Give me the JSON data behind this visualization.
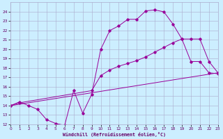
{
  "xlabel": "Windchill (Refroidissement éolien,°C)",
  "bg_color": "#cceeff",
  "line_color": "#990099",
  "xlim": [
    0,
    23
  ],
  "ylim": [
    12,
    25
  ],
  "xticks": [
    0,
    1,
    2,
    3,
    4,
    5,
    6,
    7,
    8,
    9,
    10,
    11,
    12,
    13,
    14,
    15,
    16,
    17,
    18,
    19,
    20,
    21,
    22,
    23
  ],
  "yticks": [
    12,
    13,
    14,
    15,
    16,
    17,
    18,
    19,
    20,
    21,
    22,
    23,
    24
  ],
  "line1_x": [
    0,
    1,
    2,
    3,
    4,
    5,
    6,
    7,
    8,
    9,
    10,
    11,
    12,
    13,
    14,
    15,
    16,
    17,
    18,
    19,
    20,
    21,
    22,
    23
  ],
  "line1_y": [
    14.0,
    14.4,
    14.0,
    13.6,
    12.5,
    12.1,
    11.9,
    15.6,
    13.2,
    15.2,
    20.0,
    22.0,
    22.5,
    23.2,
    23.2,
    24.1,
    24.2,
    24.0,
    22.7,
    21.1,
    18.7,
    18.7,
    17.5,
    17.4
  ],
  "line2_x": [
    0,
    1,
    9,
    10,
    11,
    12,
    13,
    14,
    15,
    16,
    17,
    18,
    19,
    20,
    21,
    22,
    23
  ],
  "line2_y": [
    14.0,
    14.3,
    15.6,
    17.2,
    17.8,
    18.2,
    18.5,
    18.8,
    19.2,
    19.7,
    20.2,
    20.7,
    21.1,
    21.1,
    21.1,
    18.7,
    17.5
  ],
  "line3_x": [
    0,
    23
  ],
  "line3_y": [
    14.0,
    17.5
  ]
}
